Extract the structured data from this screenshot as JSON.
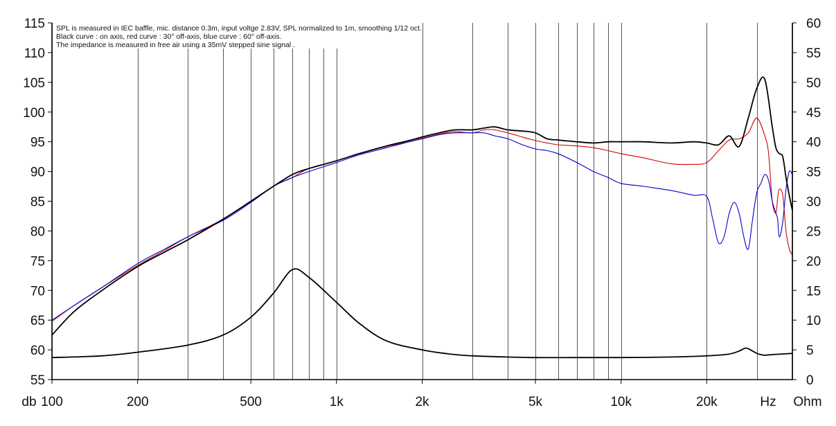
{
  "chart_data": {
    "type": "line",
    "notes": [
      "SPL is measured in IEC baffle, mic. distance 0.3m, input voltge 2.83V, SPL normalized to 1m, smoothing 1/12 oct.",
      "Black curve : on axis, red curve : 30° off-axis, blue curve : 60° off-axis.",
      "The impedance is measured in free air using a 35mV stepped sine signal ."
    ],
    "x_axis": {
      "scale": "log",
      "range": [
        100,
        40000
      ],
      "unit_label": "Hz",
      "ticks": [
        {
          "value": 100,
          "label": "100"
        },
        {
          "value": 200,
          "label": "200"
        },
        {
          "value": 500,
          "label": "500"
        },
        {
          "value": 1000,
          "label": "1k"
        },
        {
          "value": 2000,
          "label": "2k"
        },
        {
          "value": 5000,
          "label": "5k"
        },
        {
          "value": 10000,
          "label": "10k"
        },
        {
          "value": 20000,
          "label": "20k"
        }
      ]
    },
    "y_left": {
      "unit_label": "db",
      "range": [
        55,
        115
      ],
      "ticks": [
        "55",
        "60",
        "65",
        "70",
        "75",
        "80",
        "85",
        "90",
        "95",
        "100",
        "105",
        "110",
        "115"
      ]
    },
    "y_right": {
      "unit_label": "Ohm",
      "range": [
        0,
        60
      ],
      "ticks": [
        "0",
        "5",
        "10",
        "15",
        "20",
        "25",
        "30",
        "35",
        "40",
        "45",
        "50",
        "55",
        "60"
      ]
    },
    "grid": "vertical",
    "series": [
      {
        "color": "#000000",
        "axis": "left",
        "x": [
          100,
          120,
          150,
          200,
          250,
          300,
          400,
          500,
          600,
          700,
          800,
          1000,
          1200,
          1500,
          1800,
          2000,
          2300,
          2600,
          3000,
          3300,
          3600,
          4000,
          4500,
          5000,
          5500,
          6000,
          7000,
          8000,
          9000,
          10000,
          12000,
          15000,
          18000,
          20000,
          22000,
          24000,
          26000,
          28000,
          30000,
          32000,
          34000,
          35000,
          36000,
          37000,
          38000,
          39000,
          40000
        ],
        "y": [
          62.5,
          66.5,
          70,
          74,
          76.5,
          78.5,
          82,
          85,
          87.5,
          89.5,
          90.5,
          91.8,
          93,
          94.3,
          95.2,
          95.8,
          96.5,
          97,
          97,
          97.3,
          97.5,
          97,
          96.8,
          96.5,
          95.5,
          95.3,
          95,
          94.8,
          95,
          95,
          95,
          94.8,
          95,
          94.8,
          94.5,
          96,
          94.2,
          99,
          104,
          105.5,
          97.5,
          94,
          93,
          92.5,
          89,
          86,
          83.5
        ]
      },
      {
        "color": "#d40000",
        "axis": "left",
        "x": [
          100,
          120,
          150,
          200,
          250,
          300,
          400,
          500,
          600,
          700,
          800,
          1000,
          1200,
          1500,
          1800,
          2000,
          2300,
          2600,
          3000,
          3300,
          3600,
          4000,
          4500,
          5000,
          5500,
          6000,
          7000,
          8000,
          9000,
          10000,
          12000,
          15000,
          18000,
          20000,
          22000,
          24000,
          26000,
          28000,
          30000,
          32000,
          33000,
          34000,
          35000,
          35500,
          36000,
          37000,
          38000,
          39000,
          40000
        ],
        "y": [
          64.8,
          67.5,
          70.5,
          74.2,
          76.8,
          79,
          82,
          85,
          87.5,
          89,
          90.5,
          91.8,
          93,
          94.2,
          95,
          95.6,
          96.3,
          96.7,
          96.5,
          97,
          97,
          96.5,
          95.8,
          95.2,
          94.8,
          94.5,
          94.3,
          94,
          93.5,
          93,
          92.3,
          91.3,
          91.2,
          91.5,
          93.5,
          95.3,
          95.5,
          96.5,
          99,
          96,
          93,
          85,
          83,
          85.5,
          87,
          86,
          80,
          77,
          76
        ]
      },
      {
        "color": "#0000cc",
        "axis": "left",
        "x": [
          100,
          120,
          150,
          200,
          250,
          300,
          400,
          500,
          600,
          700,
          800,
          1000,
          1200,
          1500,
          1800,
          2000,
          2300,
          2600,
          3000,
          3300,
          3600,
          4000,
          4500,
          5000,
          5500,
          6000,
          7000,
          8000,
          9000,
          10000,
          12000,
          15000,
          18000,
          20000,
          21000,
          22000,
          23000,
          24000,
          25000,
          26000,
          27000,
          28000,
          29000,
          30000,
          31000,
          32000,
          33000,
          34000,
          35000,
          35500,
          36000,
          37000,
          38000,
          39000,
          40000
        ],
        "y": [
          65,
          67.5,
          70.5,
          74.5,
          77,
          79,
          81.8,
          84.8,
          87.5,
          89,
          90,
          91.5,
          92.8,
          94,
          95,
          95.5,
          96.2,
          96.5,
          96.5,
          96.5,
          96,
          95.5,
          94.5,
          93.8,
          93.5,
          93,
          91.5,
          90,
          89,
          88,
          87.5,
          86.8,
          86,
          85.8,
          82,
          78,
          79,
          83,
          84.8,
          83,
          79,
          77,
          82,
          86.5,
          88,
          89.5,
          88.5,
          85,
          83,
          82,
          79,
          81.5,
          87,
          90,
          89.5
        ]
      },
      {
        "color": "#000000",
        "axis": "right",
        "x": [
          100,
          150,
          200,
          300,
          400,
          500,
          600,
          700,
          800,
          1000,
          1200,
          1500,
          2000,
          2500,
          3000,
          4000,
          5000,
          7000,
          10000,
          15000,
          20000,
          24000,
          26000,
          27500,
          29000,
          30000,
          31000,
          32000,
          34000,
          40000
        ],
        "y": [
          3.7,
          4,
          4.6,
          5.8,
          7.5,
          10.5,
          14.5,
          18.5,
          17.2,
          13,
          9.5,
          6.5,
          5,
          4.3,
          4,
          3.8,
          3.7,
          3.7,
          3.7,
          3.8,
          4,
          4.3,
          4.8,
          5.3,
          4.8,
          4.4,
          4.2,
          4.1,
          4.2,
          4.4
        ]
      }
    ]
  }
}
